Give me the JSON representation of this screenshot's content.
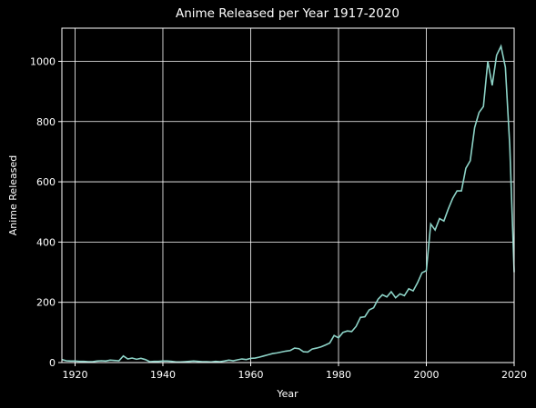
{
  "chart_data": {
    "type": "line",
    "title": "Anime Released per Year 1917-2020",
    "xlabel": "Year",
    "ylabel": "Anime Released",
    "x": [
      1917,
      1918,
      1919,
      1920,
      1921,
      1922,
      1923,
      1924,
      1925,
      1926,
      1927,
      1928,
      1929,
      1930,
      1931,
      1932,
      1933,
      1934,
      1935,
      1936,
      1937,
      1938,
      1939,
      1940,
      1941,
      1942,
      1943,
      1944,
      1945,
      1946,
      1947,
      1948,
      1949,
      1950,
      1951,
      1952,
      1953,
      1954,
      1955,
      1956,
      1957,
      1958,
      1959,
      1960,
      1961,
      1962,
      1963,
      1964,
      1965,
      1966,
      1967,
      1968,
      1969,
      1970,
      1971,
      1972,
      1973,
      1974,
      1975,
      1976,
      1977,
      1978,
      1979,
      1980,
      1981,
      1982,
      1983,
      1984,
      1985,
      1986,
      1987,
      1988,
      1989,
      1990,
      1991,
      1992,
      1993,
      1994,
      1995,
      1996,
      1997,
      1998,
      1999,
      2000,
      2001,
      2002,
      2003,
      2004,
      2005,
      2006,
      2007,
      2008,
      2009,
      2010,
      2011,
      2012,
      2013,
      2014,
      2015,
      2016,
      2017,
      2018,
      2019,
      2020
    ],
    "values": [
      10,
      6,
      5,
      5,
      4,
      4,
      3,
      3,
      5,
      6,
      5,
      8,
      7,
      6,
      22,
      12,
      15,
      11,
      14,
      10,
      3,
      4,
      4,
      5,
      5,
      4,
      2,
      2,
      3,
      4,
      5,
      4,
      3,
      3,
      2,
      4,
      3,
      5,
      8,
      6,
      9,
      12,
      10,
      14,
      15,
      18,
      22,
      26,
      30,
      32,
      35,
      38,
      40,
      48,
      46,
      36,
      35,
      45,
      48,
      52,
      58,
      65,
      90,
      82,
      100,
      105,
      103,
      120,
      150,
      152,
      175,
      182,
      210,
      225,
      218,
      235,
      215,
      228,
      222,
      245,
      238,
      265,
      298,
      305,
      460,
      440,
      478,
      470,
      510,
      545,
      570,
      570,
      645,
      670,
      780,
      830,
      850,
      1000,
      920,
      1020,
      1050,
      980,
      720,
      300
    ],
    "color": "#8dd3c7",
    "xlim": [
      1917,
      2020
    ],
    "ylim": [
      0,
      1110
    ],
    "xticks": [
      1920,
      1940,
      1960,
      1980,
      2000,
      2020
    ],
    "yticks": [
      0,
      200,
      400,
      600,
      800,
      1000
    ],
    "grid": true
  }
}
